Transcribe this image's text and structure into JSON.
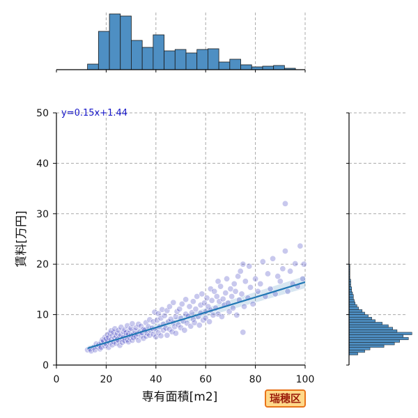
{
  "badge": {
    "label": "瑞穂区",
    "background": "#ffd98a",
    "border": "#e8731a",
    "text_color": "#9b1c0a"
  },
  "chart_data": [
    {
      "type": "scatter",
      "panel": "main",
      "xlabel": "専有面積[m2]",
      "ylabel": "賃料[万円]",
      "xlim": [
        0,
        100
      ],
      "ylim": [
        0,
        50
      ],
      "xticks": [
        0,
        20,
        40,
        60,
        80,
        100
      ],
      "yticks": [
        0,
        10,
        20,
        30,
        40,
        50
      ],
      "grid": true,
      "point_color": "#3a3ac0",
      "annotation": {
        "text": "y=0.15x+1.44",
        "color": "#1515c8"
      },
      "regression": {
        "slope": 0.15,
        "intercept": 1.44,
        "x_range": [
          12.5,
          100
        ],
        "line_color": "#1f77b4"
      },
      "points": [
        [
          12.5,
          3.0
        ],
        [
          13.5,
          3.2
        ],
        [
          14,
          2.8
        ],
        [
          15,
          3.5
        ],
        [
          15.5,
          3.0
        ],
        [
          16,
          4.2
        ],
        [
          16.5,
          3.6
        ],
        [
          17,
          4.0
        ],
        [
          17.5,
          3.2
        ],
        [
          18,
          4.5
        ],
        [
          18,
          3.5
        ],
        [
          18.5,
          5.0
        ],
        [
          19,
          4.8
        ],
        [
          19.5,
          3.8
        ],
        [
          19.5,
          5.5
        ],
        [
          20,
          4.2
        ],
        [
          20,
          5.2
        ],
        [
          20.5,
          6.0
        ],
        [
          20.5,
          4.8
        ],
        [
          21,
          3.5
        ],
        [
          21,
          5.5
        ],
        [
          21.5,
          6.3
        ],
        [
          21.5,
          4.4
        ],
        [
          22,
          5.0
        ],
        [
          22,
          6.8
        ],
        [
          22.5,
          4.0
        ],
        [
          22.5,
          5.8
        ],
        [
          23,
          6.5
        ],
        [
          23,
          4.6
        ],
        [
          23.5,
          5.3
        ],
        [
          23.5,
          7.2
        ],
        [
          24,
          5.8
        ],
        [
          24,
          4.3
        ],
        [
          24.5,
          6.3
        ],
        [
          24.5,
          5.1
        ],
        [
          25,
          4.8
        ],
        [
          25,
          6.9
        ],
        [
          25.5,
          5.6
        ],
        [
          25.5,
          3.9
        ],
        [
          26,
          6.0
        ],
        [
          26,
          7.5
        ],
        [
          26.5,
          5.2
        ],
        [
          26.5,
          4.5
        ],
        [
          27,
          6.6
        ],
        [
          27,
          5.5
        ],
        [
          27.5,
          7.0
        ],
        [
          27.5,
          4.8
        ],
        [
          28,
          5.8
        ],
        [
          28,
          6.4
        ],
        [
          28.5,
          7.8
        ],
        [
          28.5,
          5.0
        ],
        [
          29,
          6.2
        ],
        [
          29,
          4.6
        ],
        [
          29.5,
          6.9
        ],
        [
          29.5,
          5.4
        ],
        [
          30,
          5.9
        ],
        [
          30,
          7.3
        ],
        [
          30.5,
          4.9
        ],
        [
          30.5,
          8.2
        ],
        [
          31,
          6.1
        ],
        [
          31,
          5.4
        ],
        [
          31.5,
          6.8
        ],
        [
          32,
          7.4
        ],
        [
          32,
          5.6
        ],
        [
          32.5,
          6.2
        ],
        [
          33,
          8.1
        ],
        [
          33,
          4.9
        ],
        [
          33.5,
          6.6
        ],
        [
          34,
          5.8
        ],
        [
          34,
          7.7
        ],
        [
          34.5,
          6.4
        ],
        [
          35,
          5.3
        ],
        [
          35,
          7.1
        ],
        [
          35.5,
          6.9
        ],
        [
          36,
          8.4
        ],
        [
          36,
          5.7
        ],
        [
          36.5,
          6.3
        ],
        [
          37,
          7.6
        ],
        [
          37.5,
          5.9
        ],
        [
          37.5,
          9.0
        ],
        [
          38,
          6.8
        ],
        [
          38.5,
          7.3
        ],
        [
          39,
          6.1
        ],
        [
          39,
          8.6
        ],
        [
          39.5,
          10.5
        ],
        [
          40,
          7.1
        ],
        [
          40,
          5.6
        ],
        [
          40.5,
          8.9
        ],
        [
          41,
          6.4
        ],
        [
          41,
          10.2
        ],
        [
          41.5,
          7.6
        ],
        [
          42,
          9.3
        ],
        [
          42,
          5.8
        ],
        [
          42.5,
          11.0
        ],
        [
          43,
          8.1
        ],
        [
          43,
          6.9
        ],
        [
          43.5,
          9.8
        ],
        [
          44,
          7.3
        ],
        [
          44.5,
          10.8
        ],
        [
          44.5,
          5.9
        ],
        [
          45,
          8.6
        ],
        [
          45.5,
          11.6
        ],
        [
          45.5,
          7.1
        ],
        [
          46,
          9.1
        ],
        [
          46.5,
          6.6
        ],
        [
          47,
          12.4
        ],
        [
          47,
          8.4
        ],
        [
          47.5,
          7.6
        ],
        [
          48,
          9.6
        ],
        [
          48,
          6.3
        ],
        [
          48.5,
          10.6
        ],
        [
          49,
          8.0
        ],
        [
          49.5,
          11.1
        ],
        [
          50,
          7.4
        ],
        [
          50,
          9.3
        ],
        [
          50.5,
          12.1
        ],
        [
          51,
          8.7
        ],
        [
          51.5,
          6.9
        ],
        [
          52,
          10.1
        ],
        [
          52,
          13.0
        ],
        [
          52.5,
          8.3
        ],
        [
          53,
          9.7
        ],
        [
          53.5,
          11.6
        ],
        [
          54,
          7.7
        ],
        [
          54.5,
          10.4
        ],
        [
          55,
          9.1
        ],
        [
          55,
          12.6
        ],
        [
          55.5,
          8.4
        ],
        [
          56,
          11.1
        ],
        [
          56.5,
          13.6
        ],
        [
          57,
          9.6
        ],
        [
          57.5,
          7.9
        ],
        [
          58,
          11.9
        ],
        [
          58,
          10.3
        ],
        [
          58.5,
          14.1
        ],
        [
          59,
          8.9
        ],
        [
          59.5,
          12.3
        ],
        [
          60,
          10.6
        ],
        [
          60,
          9.3
        ],
        [
          60.5,
          13.3
        ],
        [
          61,
          11.6
        ],
        [
          61.5,
          8.6
        ],
        [
          62,
          15.1
        ],
        [
          62,
          10.9
        ],
        [
          62.5,
          12.8
        ],
        [
          63,
          9.9
        ],
        [
          63.5,
          14.6
        ],
        [
          64,
          11.3
        ],
        [
          64.5,
          13.6
        ],
        [
          65,
          16.6
        ],
        [
          65,
          10.1
        ],
        [
          65.5,
          12.6
        ],
        [
          66,
          15.6
        ],
        [
          66.5,
          9.6
        ],
        [
          67,
          13.1
        ],
        [
          67.5,
          11.9
        ],
        [
          68,
          14.3
        ],
        [
          68.5,
          17.1
        ],
        [
          69,
          12.3
        ],
        [
          69.5,
          10.6
        ],
        [
          70,
          15.1
        ],
        [
          70.5,
          13.6
        ],
        [
          71,
          11.3
        ],
        [
          71.5,
          16.1
        ],
        [
          72,
          14.6
        ],
        [
          72.5,
          9.9
        ],
        [
          73,
          17.6
        ],
        [
          73.5,
          12.9
        ],
        [
          74,
          18.6
        ],
        [
          74.5,
          14.1
        ],
        [
          75,
          20.0
        ],
        [
          75.5,
          11.6
        ],
        [
          76,
          16.6
        ],
        [
          77,
          13.3
        ],
        [
          77.5,
          19.6
        ],
        [
          78,
          15.4
        ],
        [
          79,
          12.1
        ],
        [
          80,
          17.1
        ],
        [
          81,
          14.6
        ],
        [
          82,
          16.1
        ],
        [
          83,
          20.5
        ],
        [
          84,
          13.6
        ],
        [
          85,
          18.1
        ],
        [
          86,
          15.1
        ],
        [
          87,
          21.1
        ],
        [
          88,
          14.1
        ],
        [
          89,
          17.6
        ],
        [
          90,
          16.6
        ],
        [
          91,
          19.1
        ],
        [
          92,
          22.6
        ],
        [
          93,
          14.6
        ],
        [
          94,
          18.6
        ],
        [
          95,
          16.1
        ],
        [
          96,
          20.1
        ],
        [
          97,
          15.6
        ],
        [
          98,
          23.6
        ],
        [
          99,
          17.1
        ],
        [
          99.5,
          20.0
        ],
        [
          92,
          32.0
        ],
        [
          75,
          6.5
        ]
      ]
    },
    {
      "type": "bar",
      "panel": "top-histogram",
      "bar_color": "#4e8fc3",
      "bin_width": 4.4,
      "x_start": 12.5,
      "xlim": [
        0,
        100
      ],
      "xticks": [
        0,
        20,
        40,
        60,
        80,
        100
      ],
      "ylim": [
        0,
        82
      ],
      "values": [
        8,
        55,
        80,
        77,
        42,
        32,
        50,
        27,
        29,
        24,
        29,
        30,
        11,
        15,
        7,
        4,
        5,
        6,
        2
      ]
    },
    {
      "type": "bar",
      "panel": "right-histogram",
      "orientation": "horizontal",
      "bar_color": "#4e8fc3",
      "bin_width": 0.5,
      "y_start": 2.0,
      "ylim": [
        0,
        50
      ],
      "yticks": [
        0,
        10,
        20,
        30,
        40,
        50
      ],
      "xlim": [
        0,
        75
      ],
      "values": [
        10,
        18,
        24,
        40,
        52,
        58,
        68,
        62,
        72,
        55,
        50,
        45,
        38,
        30,
        26,
        22,
        18,
        15,
        11,
        9,
        7,
        6,
        5,
        5,
        4,
        3,
        3,
        2,
        2,
        2,
        1,
        1,
        1,
        1,
        1,
        1
      ]
    }
  ]
}
